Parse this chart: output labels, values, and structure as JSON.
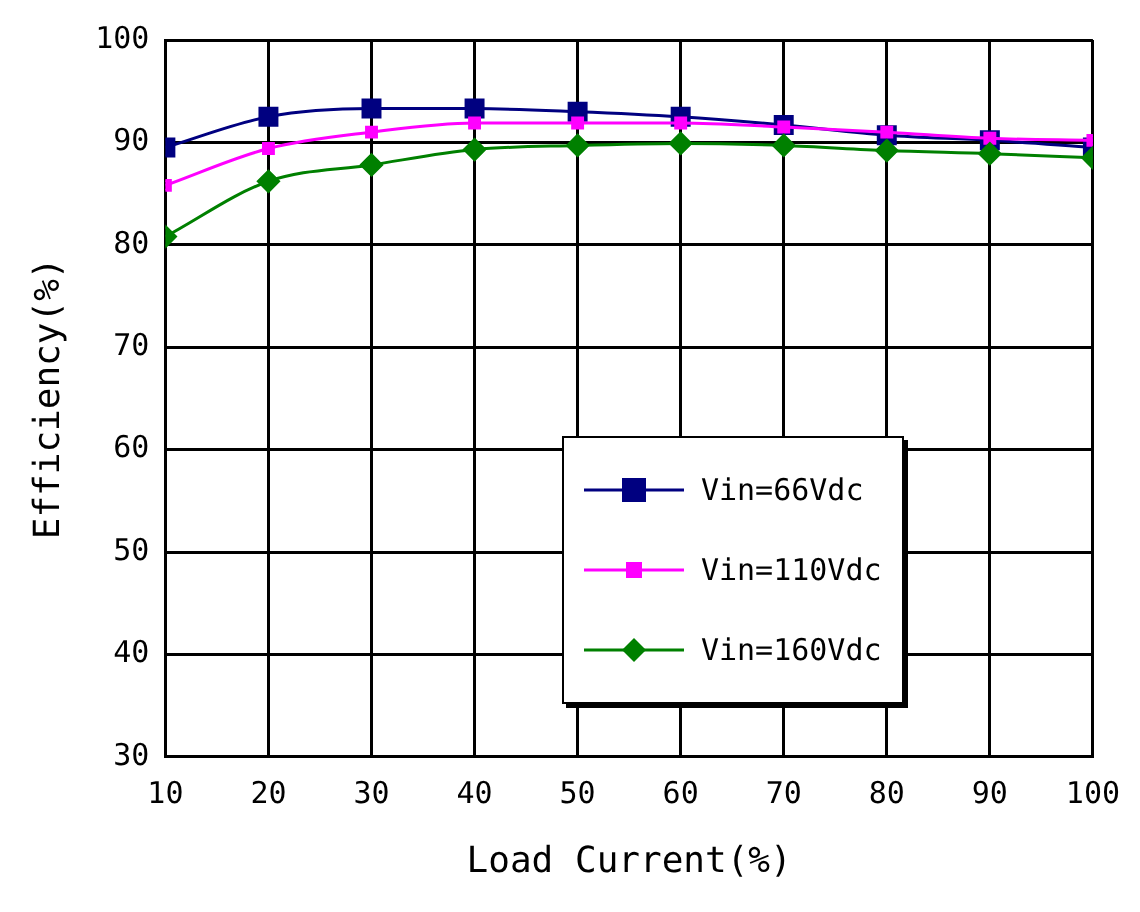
{
  "chart_data": {
    "type": "line",
    "xlabel": "Load Current(%)",
    "ylabel": "Efficiency(%)",
    "x": [
      10,
      20,
      30,
      40,
      50,
      60,
      70,
      80,
      90,
      100
    ],
    "series": [
      {
        "name": "Vin=66Vdc",
        "color": "#000080",
        "marker": "square",
        "values": [
          89.5,
          92.5,
          93.3,
          93.3,
          93,
          92.5,
          91.7,
          90.7,
          90.2,
          89.5
        ]
      },
      {
        "name": "Vin=110Vdc",
        "color": "#ff00ff",
        "marker": "square",
        "values": [
          85.8,
          89.4,
          91,
          91.9,
          91.9,
          91.9,
          91.5,
          91,
          90.4,
          90.2
        ]
      },
      {
        "name": "Vin=160Vdc",
        "color": "#008000",
        "marker": "diamond",
        "values": [
          80.8,
          86.2,
          87.8,
          89.3,
          89.7,
          89.9,
          89.7,
          89.2,
          88.9,
          88.5
        ]
      }
    ],
    "xlim": [
      10,
      100
    ],
    "xticks": [
      10,
      20,
      30,
      40,
      50,
      60,
      70,
      80,
      90,
      100
    ],
    "ylim": [
      30,
      100
    ],
    "yticks": [
      30,
      40,
      50,
      60,
      70,
      80,
      90,
      100
    ],
    "grid": true,
    "legend": "bottom right"
  }
}
